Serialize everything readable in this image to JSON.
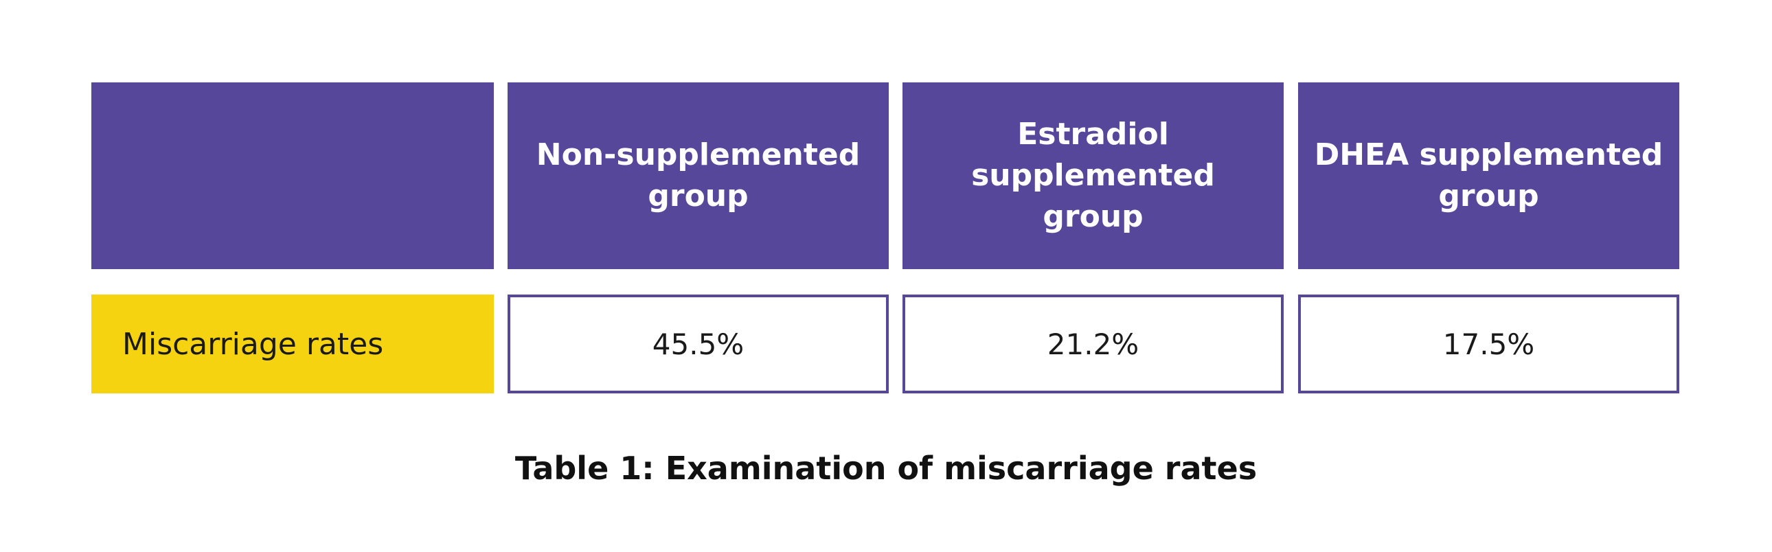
{
  "table": {
    "header": [
      "Non-supplemented group",
      "Estradiol supplemented group",
      "DHEA supplemented group"
    ],
    "rows": [
      [
        "Miscarriage rates",
        "45.5%",
        "21.2%",
        "17.5%"
      ]
    ],
    "caption": "Table 1: Examination of miscarriage rates"
  }
}
